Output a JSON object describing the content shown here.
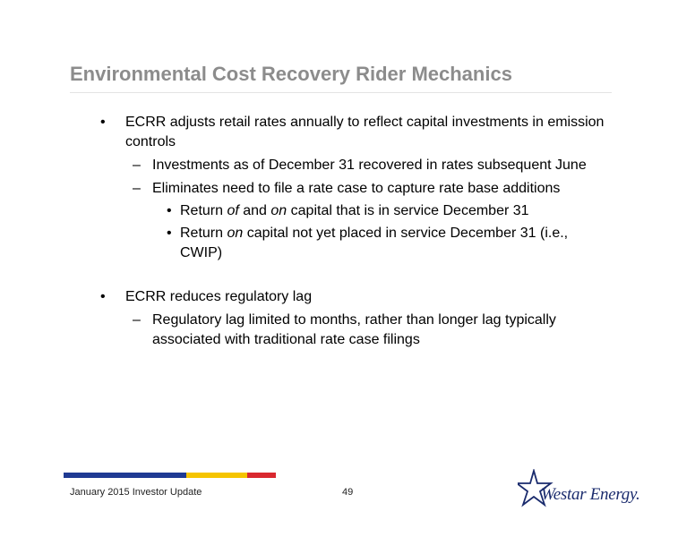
{
  "title": "Environmental Cost Recovery Rider Mechanics",
  "bullets": {
    "b1_line1": "ECRR adjusts retail rates annually to reflect capital investments in emission",
    "b1_line2": "controls",
    "b1_sub1": "Investments as of December 31 recovered in rates subsequent June",
    "b1_sub2": "Eliminates need to file a rate case to capture rate base additions",
    "b1_sub2_a_pre": "Return ",
    "b1_sub2_a_of": "of",
    "b1_sub2_a_and": " and ",
    "b1_sub2_a_on": "on",
    "b1_sub2_a_post": " capital that is in service December 31",
    "b1_sub2_b_pre": "Return ",
    "b1_sub2_b_on": "on",
    "b1_sub2_b_post": " capital not yet placed in service December 31 (i.e.,",
    "b1_sub2_b_line2": "CWIP)",
    "b2_line1": "ECRR reduces regulatory lag",
    "b2_sub1_line1": "Regulatory lag limited to months, rather than longer lag typically",
    "b2_sub1_line2": "associated with traditional rate case filings",
    "marker_l1": "•",
    "marker_l2": "–",
    "marker_l3": "•"
  },
  "footer": {
    "left_text": "January 2015 Investor Update",
    "page_number": "49",
    "logo_text": "Westar Energy.",
    "bar_colors": [
      "#1f3a93",
      "#f5c400",
      "#d9282f"
    ]
  },
  "colors": {
    "title": "#8c8c8c",
    "logo": "#1a2b6d"
  }
}
